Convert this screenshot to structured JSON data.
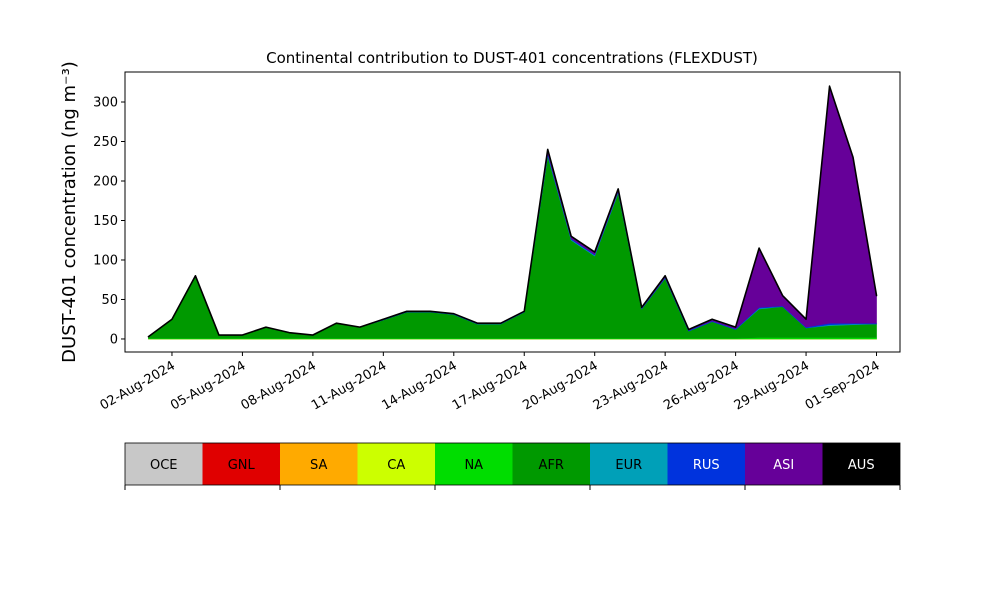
{
  "chart_data": {
    "type": "stacked_area",
    "title": "Continental contribution to DUST-401 concentrations (FLEXDUST)",
    "y_label": "DUST-401 concentration (ng m⁻³)",
    "x": [
      "2024-08-01",
      "2024-08-02",
      "2024-08-03",
      "2024-08-04",
      "2024-08-05",
      "2024-08-06",
      "2024-08-07",
      "2024-08-08",
      "2024-08-09",
      "2024-08-10",
      "2024-08-11",
      "2024-08-12",
      "2024-08-13",
      "2024-08-14",
      "2024-08-15",
      "2024-08-16",
      "2024-08-17",
      "2024-08-18",
      "2024-08-19",
      "2024-08-20",
      "2024-08-21",
      "2024-08-22",
      "2024-08-23",
      "2024-08-24",
      "2024-08-25",
      "2024-08-26",
      "2024-08-27",
      "2024-08-28",
      "2024-08-29",
      "2024-08-30",
      "2024-08-31",
      "2024-09-01"
    ],
    "series": [
      {
        "name": "OCE",
        "color": "#c8c8c8",
        "values": [
          0,
          0,
          0,
          0,
          0,
          0,
          0,
          0,
          0,
          0,
          0,
          0,
          0,
          0,
          0,
          0,
          0,
          0,
          0,
          0,
          0,
          0,
          0,
          0,
          0,
          0,
          0,
          0,
          0,
          0,
          0,
          0
        ]
      },
      {
        "name": "GNL",
        "color": "#e00000",
        "values": [
          0,
          0,
          0,
          0,
          0,
          0,
          0,
          0,
          0,
          0,
          0,
          0,
          0,
          0,
          0,
          0,
          0,
          0,
          0,
          0,
          0,
          0,
          0,
          0,
          0,
          0,
          0,
          0,
          0,
          0,
          0,
          0
        ]
      },
      {
        "name": "SA",
        "color": "#ffaa00",
        "values": [
          0,
          0,
          0,
          0,
          0,
          0,
          0,
          0,
          0,
          0,
          0,
          0,
          0,
          0,
          0,
          0,
          0,
          0,
          0,
          0,
          0,
          0,
          0,
          0,
          0,
          0,
          0,
          0,
          0,
          0,
          0,
          0
        ]
      },
      {
        "name": "CA",
        "color": "#ccff00",
        "values": [
          0,
          0,
          0,
          0,
          0,
          0,
          0,
          0,
          0,
          0,
          0,
          0,
          0,
          0,
          0,
          0,
          0,
          0,
          0,
          0,
          0,
          0,
          0,
          0,
          0,
          0,
          0,
          0,
          0,
          0,
          0,
          0
        ]
      },
      {
        "name": "NA",
        "color": "#00dd00",
        "values": [
          1,
          1,
          1,
          1,
          1,
          1,
          1,
          1,
          1,
          1,
          1,
          1,
          1,
          1,
          1,
          1,
          1,
          1,
          1,
          1,
          1,
          1,
          1,
          1,
          1,
          1,
          2,
          2,
          2,
          2,
          2,
          2
        ]
      },
      {
        "name": "AFR",
        "color": "#009900",
        "values": [
          2,
          24,
          79,
          4,
          4,
          14,
          7,
          4,
          19,
          14,
          23,
          33,
          33,
          30,
          18,
          18,
          33,
          231,
          124,
          104,
          184,
          37,
          76,
          9,
          21,
          11,
          36,
          39,
          12,
          15,
          16,
          17
        ]
      },
      {
        "name": "EUR",
        "color": "#00a0b8",
        "values": [
          0,
          0,
          0,
          0,
          0,
          0,
          0,
          0,
          0,
          0,
          0,
          0,
          0,
          0,
          0,
          0,
          0,
          1,
          1,
          1,
          1,
          0,
          0,
          0,
          0,
          0,
          1,
          0,
          0,
          1,
          1,
          0
        ]
      },
      {
        "name": "RUS",
        "color": "#0033dd",
        "values": [
          0,
          0,
          0,
          0,
          0,
          0,
          0,
          0,
          0,
          0,
          1,
          1,
          1,
          1,
          1,
          1,
          1,
          2,
          1,
          1,
          1,
          1,
          1,
          1,
          1,
          1,
          1,
          1,
          1,
          2,
          1,
          1
        ]
      },
      {
        "name": "ASI",
        "color": "#660099",
        "values": [
          0,
          0,
          0,
          0,
          0,
          0,
          0,
          0,
          0,
          0,
          0,
          0,
          0,
          0,
          0,
          0,
          0,
          5,
          3,
          3,
          3,
          1,
          2,
          1,
          2,
          2,
          75,
          13,
          10,
          300,
          210,
          35
        ]
      },
      {
        "name": "AUS",
        "color": "#000000",
        "values": [
          0,
          0,
          0,
          0,
          0,
          0,
          0,
          0,
          0,
          0,
          0,
          0,
          0,
          0,
          0,
          0,
          0,
          0,
          0,
          0,
          0,
          0,
          0,
          0,
          0,
          0,
          0,
          0,
          0,
          0,
          0,
          0
        ]
      }
    ],
    "xlim": [
      "2024-07-31",
      "2024-09-02"
    ],
    "xticks": [
      {
        "value": "2024-08-02",
        "label": "02-Aug-2024"
      },
      {
        "value": "2024-08-05",
        "label": "05-Aug-2024"
      },
      {
        "value": "2024-08-08",
        "label": "08-Aug-2024"
      },
      {
        "value": "2024-08-11",
        "label": "11-Aug-2024"
      },
      {
        "value": "2024-08-14",
        "label": "14-Aug-2024"
      },
      {
        "value": "2024-08-17",
        "label": "17-Aug-2024"
      },
      {
        "value": "2024-08-20",
        "label": "20-Aug-2024"
      },
      {
        "value": "2024-08-23",
        "label": "23-Aug-2024"
      },
      {
        "value": "2024-08-26",
        "label": "26-Aug-2024"
      },
      {
        "value": "2024-08-29",
        "label": "29-Aug-2024"
      },
      {
        "value": "2024-09-01",
        "label": "01-Sep-2024"
      }
    ],
    "ylim": [
      -16.5,
      338
    ],
    "yticks": [
      0,
      50,
      100,
      150,
      200,
      250,
      300
    ],
    "grid": false,
    "legend": "colorbar-below"
  }
}
